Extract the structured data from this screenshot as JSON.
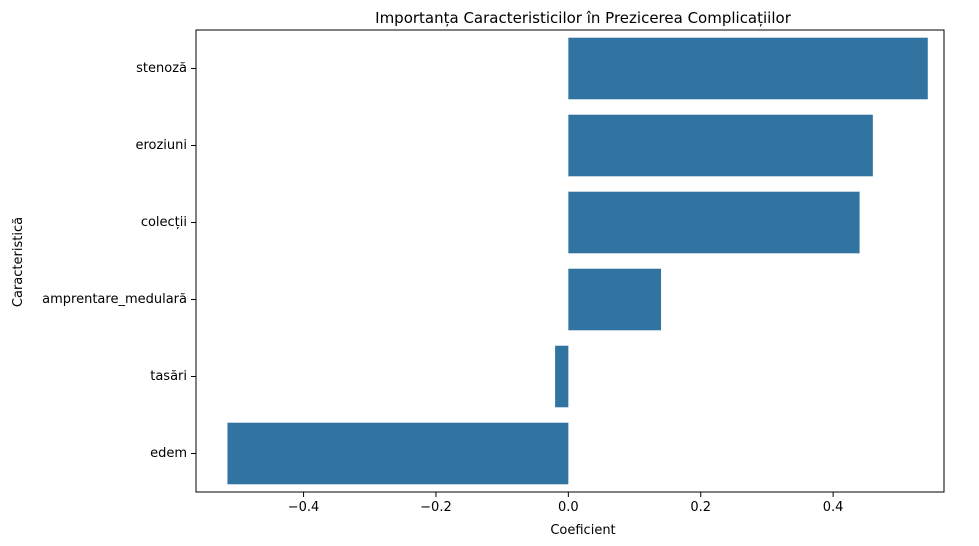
{
  "chart_data": {
    "type": "bar",
    "orientation": "horizontal",
    "title": "Importanța Caracteristicilor în Prezicerea Complicațiilor",
    "xlabel": "Coeficient",
    "ylabel": "Caracteristică",
    "categories": [
      "stenoză",
      "eroziuni",
      "colecții",
      "amprentare_medulară",
      "tasări",
      "edem"
    ],
    "values": [
      0.543,
      0.46,
      0.44,
      0.14,
      -0.02,
      -0.515
    ],
    "xlim": [
      -0.5625,
      0.5675
    ],
    "xticks": [
      -0.4,
      -0.2,
      0.0,
      0.2,
      0.4
    ],
    "xtick_labels": [
      "−0.4",
      "−0.2",
      "0.0",
      "0.2",
      "0.4"
    ],
    "bar_color": "#3274a1",
    "grid": false
  }
}
